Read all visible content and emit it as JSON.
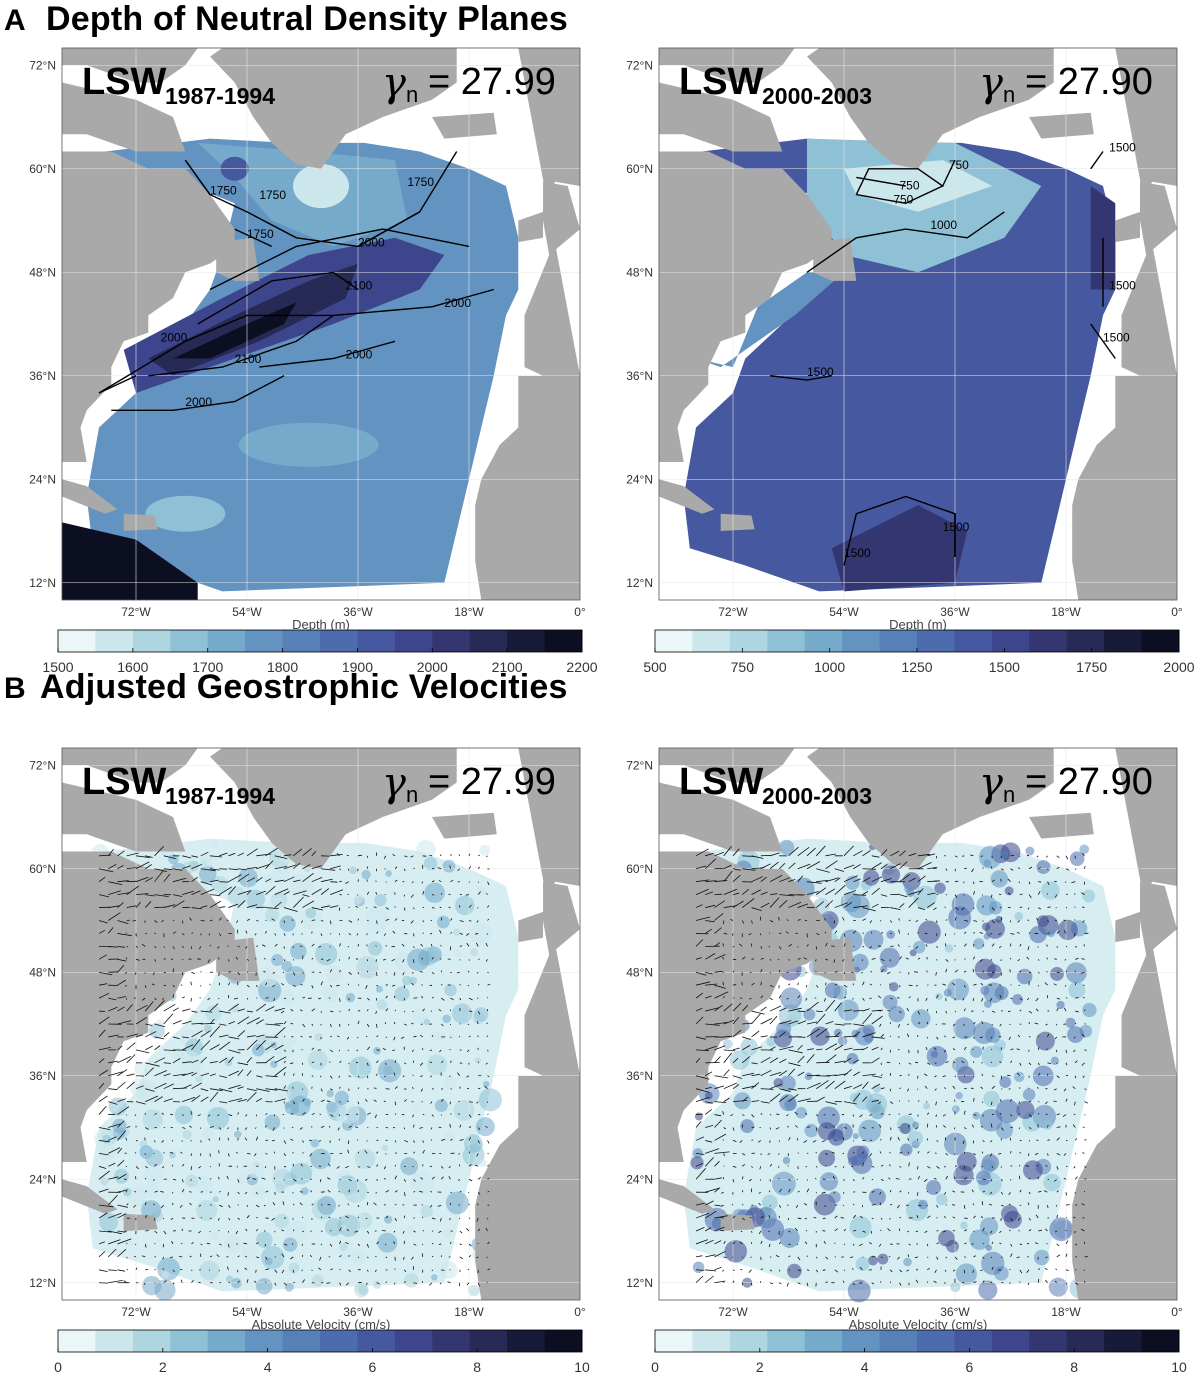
{
  "sections": [
    {
      "letter": "A",
      "title": "Depth of Neutral Density Planes"
    },
    {
      "letter": "B",
      "title": "Adjusted Geostrophic Velocities"
    }
  ],
  "panels": [
    {
      "lsw_main": "LSW",
      "lsw_sub": "1987-1994",
      "gamma_symbol": "γ",
      "gamma_sub": "n",
      "gamma_value": "= 27.99",
      "xlabel": "Depth (m)",
      "kind": "depth1",
      "contours": [
        "1750",
        "1750",
        "1750",
        "1750",
        "2000",
        "2100",
        "2000",
        "2000",
        "2100",
        "2000",
        "2000"
      ],
      "cbar_ticks": [
        "1500",
        "1600",
        "1700",
        "1800",
        "1900",
        "2000",
        "2100",
        "2200"
      ]
    },
    {
      "lsw_main": "LSW",
      "lsw_sub": "2000-2003",
      "gamma_symbol": "γ",
      "gamma_sub": "n",
      "gamma_value": "= 27.90",
      "xlabel": "Depth (m)",
      "kind": "depth2",
      "contours": [
        "750",
        "750",
        "1000",
        "1500",
        "1500",
        "1500",
        "1500",
        "1500",
        "1500",
        "750"
      ],
      "cbar_ticks": [
        "500",
        "750",
        "1000",
        "1250",
        "1500",
        "1750",
        "2000"
      ]
    },
    {
      "lsw_main": "LSW",
      "lsw_sub": "1987-1994",
      "gamma_symbol": "γ",
      "gamma_sub": "n",
      "gamma_value": "= 27.99",
      "xlabel": "Absolute Velocity (cm/s)",
      "kind": "vel1",
      "contours": [],
      "cbar_ticks": [
        "0",
        "2",
        "4",
        "6",
        "8",
        "10"
      ]
    },
    {
      "lsw_main": "LSW",
      "lsw_sub": "2000-2003",
      "gamma_symbol": "γ",
      "gamma_sub": "n",
      "gamma_value": "= 27.90",
      "xlabel": "Absolute Velocity (cm/s)",
      "kind": "vel2",
      "contours": [],
      "cbar_ticks": [
        "0",
        "2",
        "4",
        "6",
        "8",
        "10"
      ]
    }
  ],
  "axes": {
    "lat_labels": [
      "72°N",
      "60°N",
      "48°N",
      "36°N",
      "24°N",
      "12°N"
    ],
    "lon_labels": [
      "72°W",
      "54°W",
      "36°W",
      "18°W",
      "0°"
    ]
  },
  "colors": {
    "land": "#a9a9a9",
    "nodata": "#ffffff",
    "colormap": [
      "#eaf6f8",
      "#cce7ec",
      "#aed6e0",
      "#8ec1d6",
      "#75aacb",
      "#6393c1",
      "#5880b8",
      "#4c6cad",
      "#46589f",
      "#3d458c",
      "#333670",
      "#262a54",
      "#181b38",
      "#0c0e22"
    ]
  },
  "map_extent": {
    "lon_min": -84,
    "lon_max": 0,
    "lat_min": 10,
    "lat_max": 74
  }
}
